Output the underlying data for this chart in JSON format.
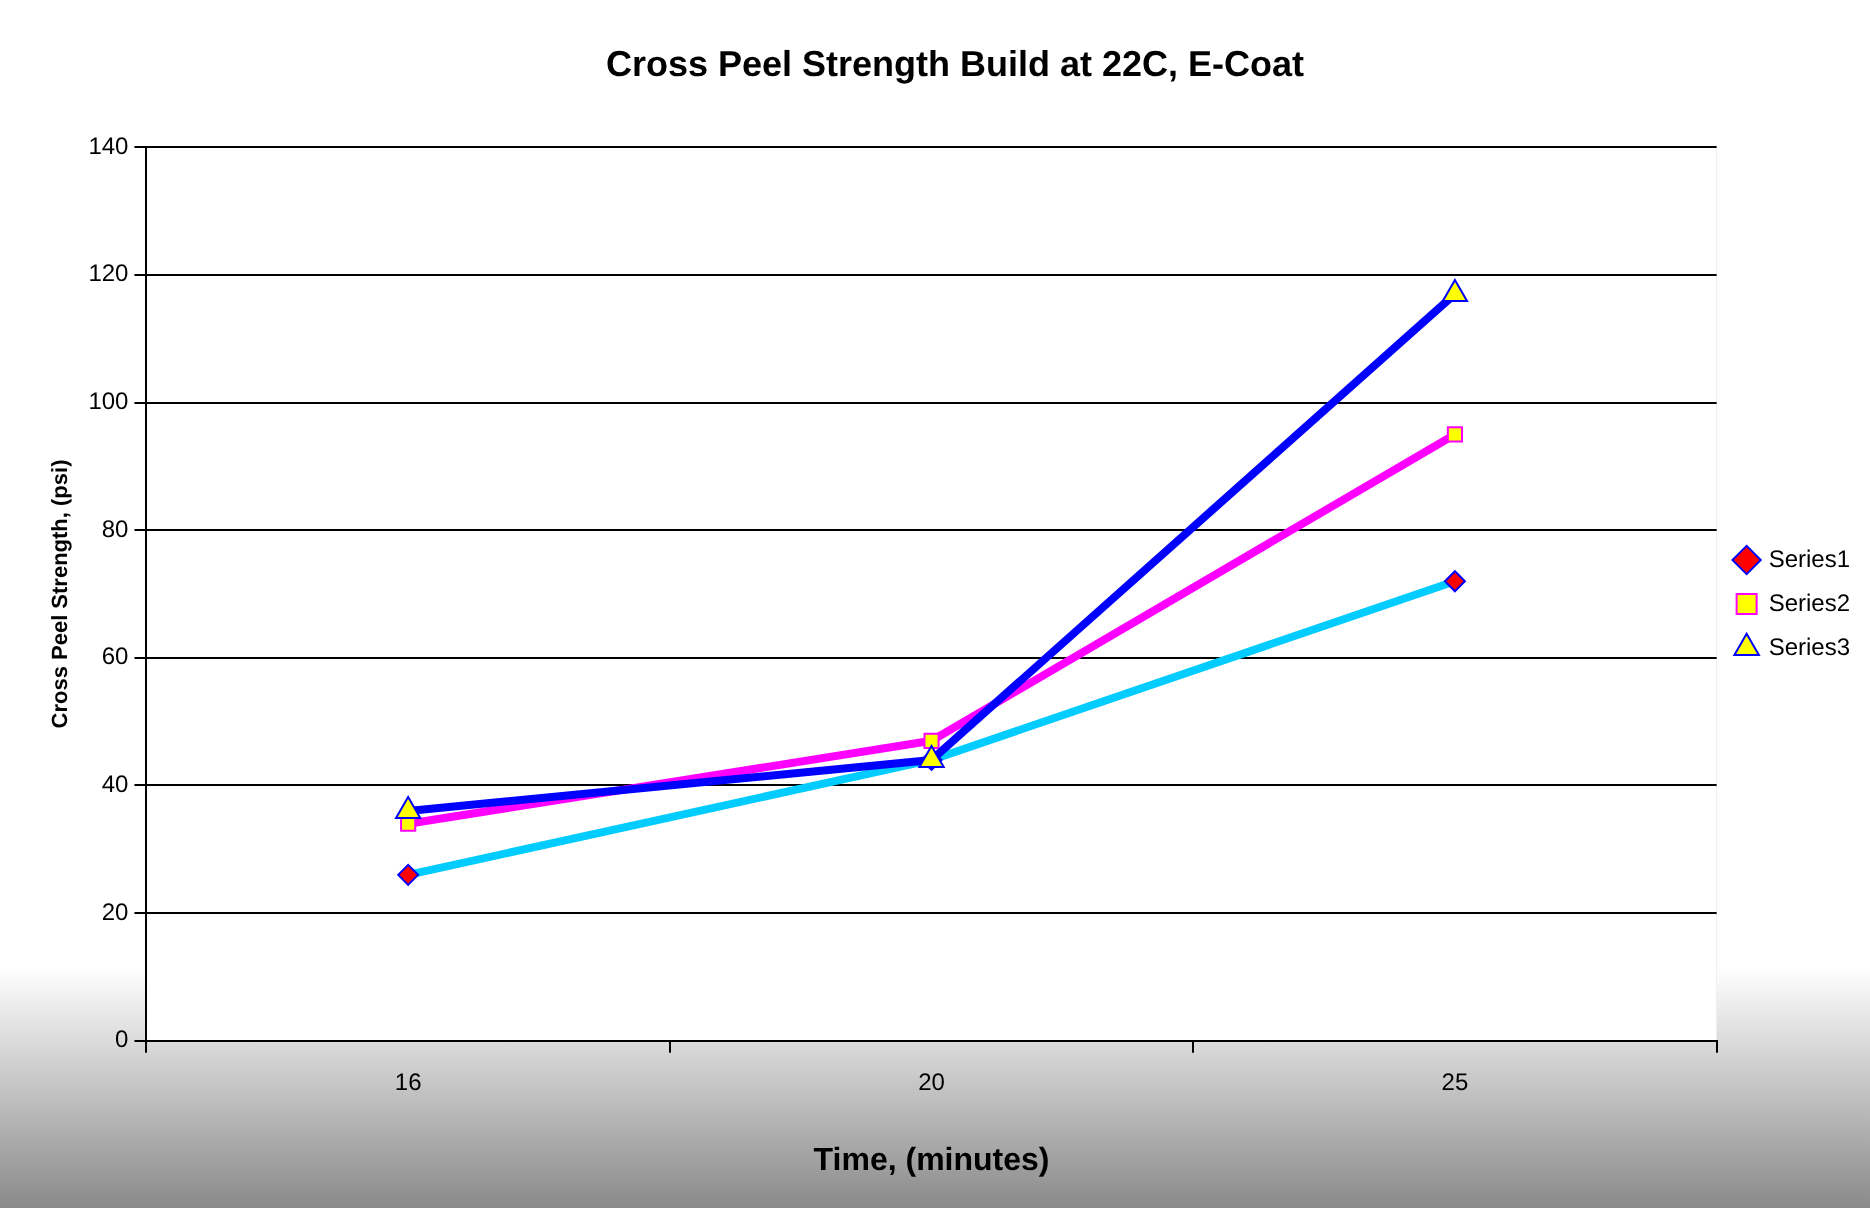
{
  "chart_data": {
    "type": "line",
    "title": "Cross Peel Strength Build at 22C, E-Coat",
    "xlabel": "Time, (minutes)",
    "ylabel": "Cross Peel Strength, (psi)",
    "categories": [
      "16",
      "20",
      "25"
    ],
    "series": [
      {
        "name": "Series1",
        "color": "#00ccff",
        "marker": "diamond",
        "values": [
          26,
          44,
          72
        ]
      },
      {
        "name": "Series2",
        "color": "#ff00ff",
        "marker": "square",
        "values": [
          34,
          47,
          95
        ]
      },
      {
        "name": "Series3",
        "color": "#0000ff",
        "marker": "triangle",
        "values": [
          36,
          44,
          117
        ]
      }
    ],
    "ylim": [
      0,
      140
    ],
    "yticks": [
      0,
      20,
      40,
      60,
      80,
      100,
      120,
      140
    ],
    "grid": "y",
    "legend": "right"
  }
}
